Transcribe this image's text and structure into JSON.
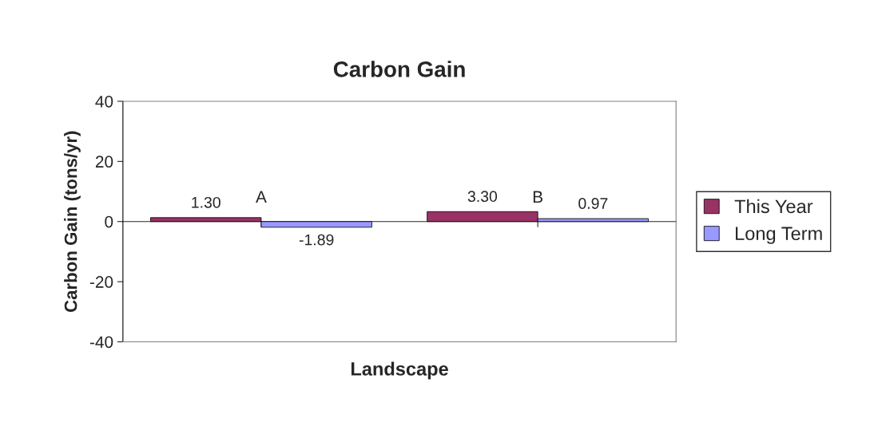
{
  "chart_data": {
    "type": "bar",
    "title": "Carbon Gain",
    "xlabel": "Landscape",
    "ylabel": "Carbon Gain (tons/yr)",
    "categories": [
      "A",
      "B"
    ],
    "series": [
      {
        "name": "This Year",
        "color": "#993366",
        "values": [
          1.3,
          3.3
        ],
        "value_labels": [
          "1.30",
          "3.30"
        ]
      },
      {
        "name": "Long Term",
        "color": "#9999ff",
        "values": [
          -1.89,
          0.97
        ],
        "value_labels": [
          "-1.89",
          "0.97"
        ]
      }
    ],
    "ylim": [
      -40,
      40
    ],
    "yticks": [
      -40,
      -20,
      0,
      20,
      40
    ],
    "grid": false,
    "legend": "right"
  }
}
